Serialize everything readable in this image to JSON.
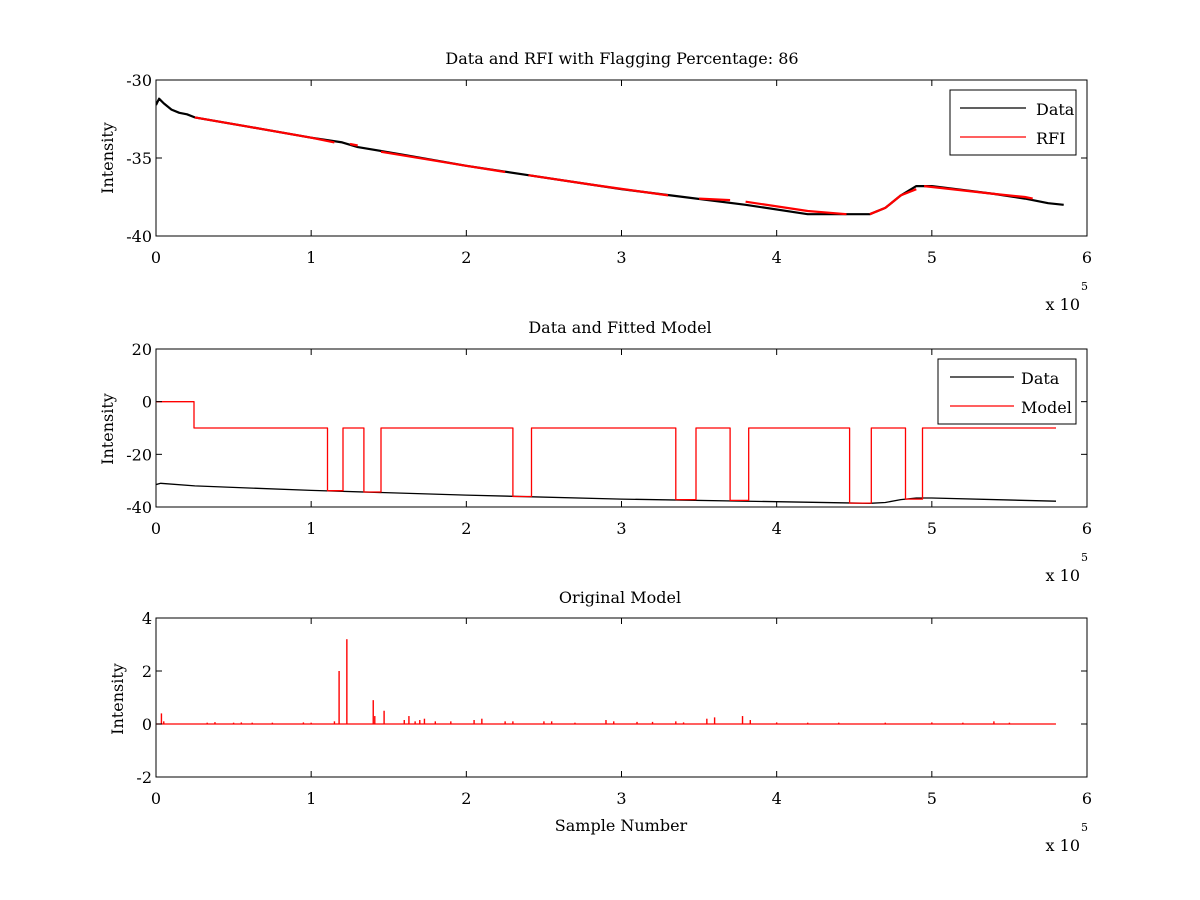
{
  "figure": {
    "background": "#ffffff"
  },
  "chart_data": [
    {
      "type": "line",
      "title": "Data and RFI with Flagging Percentage: 86",
      "xlabel": "",
      "ylabel": "Intensity",
      "xlim": [
        0,
        600000
      ],
      "ylim": [
        -40,
        -30
      ],
      "x_ticks": [
        0,
        1,
        2,
        3,
        4,
        5,
        6
      ],
      "y_ticks": [
        -30,
        -35,
        -40
      ],
      "x_multiplier_label": "x 10",
      "x_multiplier_exponent": "5",
      "grid": false,
      "legend": {
        "position": "top-right",
        "entries": [
          "Data",
          "RFI"
        ]
      },
      "series": [
        {
          "name": "Data",
          "color": "#000000",
          "x": [
            0,
            2000,
            5000,
            10000,
            15000,
            20000,
            25000,
            60000,
            100000,
            120000,
            130000,
            160000,
            200000,
            240000,
            280000,
            300000,
            340000,
            380000,
            420000,
            460000,
            470000,
            480000,
            490000,
            500000,
            540000,
            560000,
            575000,
            585000
          ],
          "y": [
            -31.6,
            -31.2,
            -31.5,
            -31.9,
            -32.1,
            -32.2,
            -32.4,
            -33.0,
            -33.7,
            -34.0,
            -34.3,
            -34.8,
            -35.5,
            -36.1,
            -36.7,
            -37.0,
            -37.5,
            -38.0,
            -38.6,
            -38.6,
            -38.2,
            -37.4,
            -36.8,
            -36.8,
            -37.3,
            -37.6,
            -37.9,
            -38.0
          ]
        },
        {
          "name": "RFI",
          "color": "#ff0000",
          "segments": [
            {
              "x": [
                25000,
                60000,
                100000,
                115000
              ],
              "y": [
                -32.4,
                -33.0,
                -33.7,
                -34.0
              ]
            },
            {
              "x": [
                125000,
                130000
              ],
              "y": [
                -34.1,
                -34.2
              ]
            },
            {
              "x": [
                145000,
                200000,
                225000
              ],
              "y": [
                -34.6,
                -35.5,
                -35.9
              ]
            },
            {
              "x": [
                240000,
                280000,
                330000
              ],
              "y": [
                -36.1,
                -36.7,
                -37.4
              ]
            },
            {
              "x": [
                350000,
                370000
              ],
              "y": [
                -37.6,
                -37.7
              ]
            },
            {
              "x": [
                380000,
                420000,
                445000
              ],
              "y": [
                -37.8,
                -38.4,
                -38.6
              ]
            },
            {
              "x": [
                460000,
                470000,
                480000,
                490000
              ],
              "y": [
                -38.6,
                -38.2,
                -37.4,
                -37.0
              ]
            },
            {
              "x": [
                495000,
                540000,
                560000,
                565000
              ],
              "y": [
                -36.8,
                -37.3,
                -37.5,
                -37.6
              ]
            }
          ]
        }
      ]
    },
    {
      "type": "line",
      "title": "Data and Fitted Model",
      "xlabel": "",
      "ylabel": "Intensity",
      "xlim": [
        0,
        600000
      ],
      "ylim": [
        -40,
        20
      ],
      "x_ticks": [
        0,
        1,
        2,
        3,
        4,
        5,
        6
      ],
      "y_ticks": [
        20,
        0,
        -20,
        -40
      ],
      "x_multiplier_label": "x 10",
      "x_multiplier_exponent": "5",
      "grid": false,
      "legend": {
        "position": "top-right",
        "entries": [
          "Data",
          "Model"
        ]
      },
      "series": [
        {
          "name": "Data",
          "color": "#000000",
          "x": [
            0,
            3000,
            25000,
            100000,
            200000,
            300000,
            400000,
            460000,
            470000,
            480000,
            490000,
            500000,
            580000
          ],
          "y": [
            -31.5,
            -31.0,
            -32.0,
            -33.7,
            -35.5,
            -37.0,
            -38.0,
            -38.6,
            -38.3,
            -37.2,
            -36.6,
            -36.6,
            -37.8
          ]
        },
        {
          "name": "Model",
          "color": "#ff0000",
          "x": [
            0,
            24500,
            24500,
            110500,
            110500,
            120500,
            120500,
            134000,
            134000,
            145000,
            145000,
            230000,
            230000,
            242000,
            242000,
            335000,
            335000,
            348000,
            348000,
            370000,
            370000,
            382000,
            382000,
            447000,
            447000,
            461000,
            461000,
            483000,
            483000,
            494000,
            494000,
            580000
          ],
          "y": [
            0,
            0,
            -10,
            -10,
            -33.8,
            -33.8,
            -10,
            -10,
            -34.3,
            -34.3,
            -10,
            -10,
            -36.0,
            -36.0,
            -10,
            -10,
            -37.2,
            -37.2,
            -10,
            -10,
            -37.5,
            -37.5,
            -10,
            -10,
            -38.5,
            -38.5,
            -10,
            -10,
            -37.0,
            -37.0,
            -10,
            -10
          ]
        }
      ]
    },
    {
      "type": "line",
      "title": "Original Model",
      "xlabel": "Sample Number",
      "ylabel": "Intensity",
      "xlim": [
        0,
        600000
      ],
      "ylim": [
        -2,
        4
      ],
      "x_ticks": [
        0,
        1,
        2,
        3,
        4,
        5,
        6
      ],
      "y_ticks": [
        4,
        2,
        0,
        -2
      ],
      "x_multiplier_label": "x 10",
      "x_multiplier_exponent": "5",
      "grid": false,
      "legend": null,
      "series": [
        {
          "name": "",
          "color": "#ff0000",
          "baseline": 0,
          "x_end": 580000,
          "spikes": [
            [
              3500,
              0.4
            ],
            [
              5000,
              0.1
            ],
            [
              33000,
              0.05
            ],
            [
              38000,
              0.07
            ],
            [
              50000,
              0.05
            ],
            [
              55000,
              0.06
            ],
            [
              62000,
              0.05
            ],
            [
              75000,
              0.05
            ],
            [
              95000,
              0.06
            ],
            [
              100000,
              0.05
            ],
            [
              115000,
              0.1
            ],
            [
              118000,
              2.0
            ],
            [
              123000,
              3.2
            ],
            [
              140000,
              0.9
            ],
            [
              141000,
              0.3
            ],
            [
              147000,
              0.5
            ],
            [
              160000,
              0.15
            ],
            [
              163000,
              0.3
            ],
            [
              167000,
              0.1
            ],
            [
              170000,
              0.15
            ],
            [
              173000,
              0.2
            ],
            [
              180000,
              0.1
            ],
            [
              190000,
              0.1
            ],
            [
              205000,
              0.15
            ],
            [
              210000,
              0.2
            ],
            [
              225000,
              0.1
            ],
            [
              230000,
              0.1
            ],
            [
              250000,
              0.1
            ],
            [
              255000,
              0.1
            ],
            [
              270000,
              0.05
            ],
            [
              290000,
              0.15
            ],
            [
              295000,
              0.1
            ],
            [
              310000,
              0.08
            ],
            [
              320000,
              0.08
            ],
            [
              335000,
              0.1
            ],
            [
              340000,
              0.06
            ],
            [
              355000,
              0.2
            ],
            [
              360000,
              0.25
            ],
            [
              378000,
              0.3
            ],
            [
              383000,
              0.15
            ],
            [
              400000,
              0.06
            ],
            [
              420000,
              0.05
            ],
            [
              440000,
              0.05
            ],
            [
              470000,
              0.05
            ],
            [
              500000,
              0.06
            ],
            [
              520000,
              0.05
            ],
            [
              540000,
              0.1
            ],
            [
              550000,
              0.05
            ]
          ]
        }
      ]
    }
  ]
}
